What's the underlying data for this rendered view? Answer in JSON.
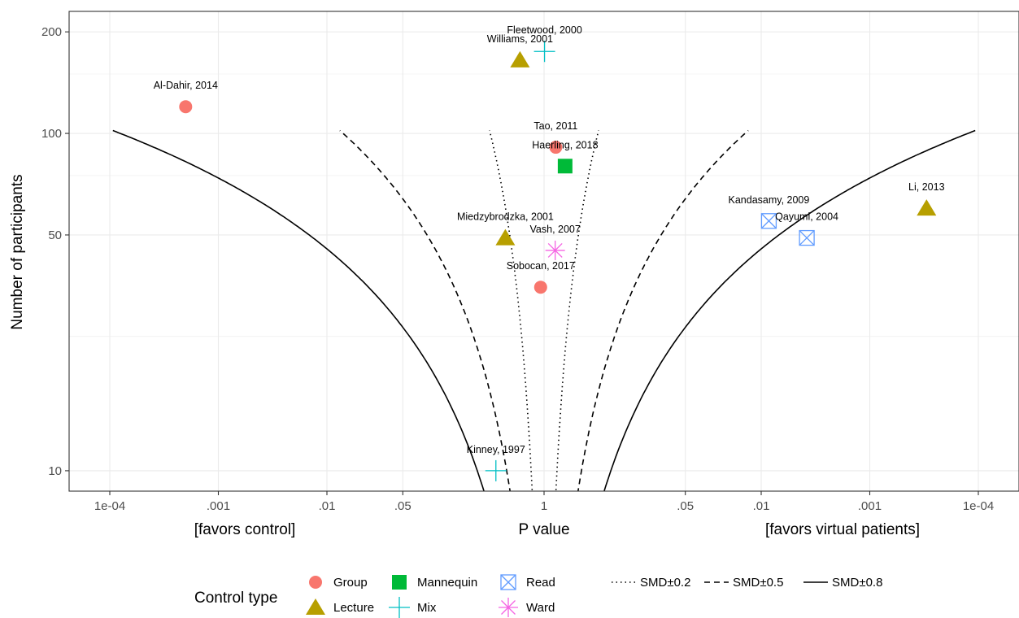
{
  "chart_data": {
    "type": "scatter",
    "title": "",
    "xlabel": "P value",
    "x_side_labels": {
      "left": "[favors control]",
      "right": "[favors virtual patients]"
    },
    "ylabel": "Number of participants",
    "x_scale": "signed log10 p-value (left = favors control, right = favors virtual patients)",
    "y_scale": "log10",
    "ylim": [
      8.7,
      230
    ],
    "x_ticks": [
      {
        "side": "left",
        "p": 0.0001,
        "label": "1e-04"
      },
      {
        "side": "left",
        "p": 0.001,
        "label": ".001"
      },
      {
        "side": "left",
        "p": 0.01,
        "label": ".01"
      },
      {
        "side": "left",
        "p": 0.05,
        "label": ".05"
      },
      {
        "side": "center",
        "p": 1,
        "label": "1"
      },
      {
        "side": "right",
        "p": 0.05,
        "label": ".05"
      },
      {
        "side": "right",
        "p": 0.01,
        "label": ".01"
      },
      {
        "side": "right",
        "p": 0.001,
        "label": ".001"
      },
      {
        "side": "right",
        "p": 0.0001,
        "label": "1e-04"
      }
    ],
    "y_ticks": [
      10,
      50,
      100,
      200
    ],
    "grid": true,
    "legend_position": "bottom",
    "legend_title": "Control type",
    "control_types": [
      {
        "name": "Group",
        "shape": "circle",
        "color": "#F8766D"
      },
      {
        "name": "Lecture",
        "shape": "triangle",
        "color": "#B79F00"
      },
      {
        "name": "Mannequin",
        "shape": "square",
        "color": "#00BA38"
      },
      {
        "name": "Mix",
        "shape": "plus",
        "color": "#00BFC4"
      },
      {
        "name": "Read",
        "shape": "boxx",
        "color": "#619CFF"
      },
      {
        "name": "Ward",
        "shape": "asterisk",
        "color": "#F564E3"
      }
    ],
    "contours": [
      {
        "name": "SMD±0.2",
        "smd": 0.2,
        "style": "dotted"
      },
      {
        "name": "SMD±0.5",
        "smd": 0.5,
        "style": "dashed"
      },
      {
        "name": "SMD±0.8",
        "smd": 0.8,
        "style": "solid"
      }
    ],
    "points": [
      {
        "label": "Al-Dahir, 2014",
        "control": "Group",
        "side": "left",
        "p": 0.0005,
        "n": 120
      },
      {
        "label": "Fleetwood, 2000",
        "control": "Mix",
        "side": "right",
        "p": 0.99,
        "n": 175
      },
      {
        "label": "Williams, 2001",
        "control": "Lecture",
        "side": "left",
        "p": 0.6,
        "n": 165
      },
      {
        "label": "Tao, 2011",
        "control": "Group",
        "side": "right",
        "p": 0.78,
        "n": 91
      },
      {
        "label": "Haerling, 2018",
        "control": "Mannequin",
        "side": "right",
        "p": 0.64,
        "n": 80
      },
      {
        "label": "Miedzybrodzka, 2001",
        "control": "Lecture",
        "side": "left",
        "p": 0.44,
        "n": 49
      },
      {
        "label": "Vash, 2007",
        "control": "Ward",
        "side": "right",
        "p": 0.79,
        "n": 45
      },
      {
        "label": "Sobocan, 2017",
        "control": "Group",
        "side": "left",
        "p": 0.93,
        "n": 35
      },
      {
        "label": "Kinney, 1997",
        "control": "Mix",
        "side": "left",
        "p": 0.36,
        "n": 10
      },
      {
        "label": "Kandasamy, 2009",
        "control": "Read",
        "side": "right",
        "p": 0.0085,
        "n": 55
      },
      {
        "label": "Qayumi, 2004",
        "control": "Read",
        "side": "right",
        "p": 0.0038,
        "n": 49
      },
      {
        "label": "Li, 2013",
        "control": "Lecture",
        "side": "right",
        "p": 0.0003,
        "n": 60
      }
    ]
  }
}
